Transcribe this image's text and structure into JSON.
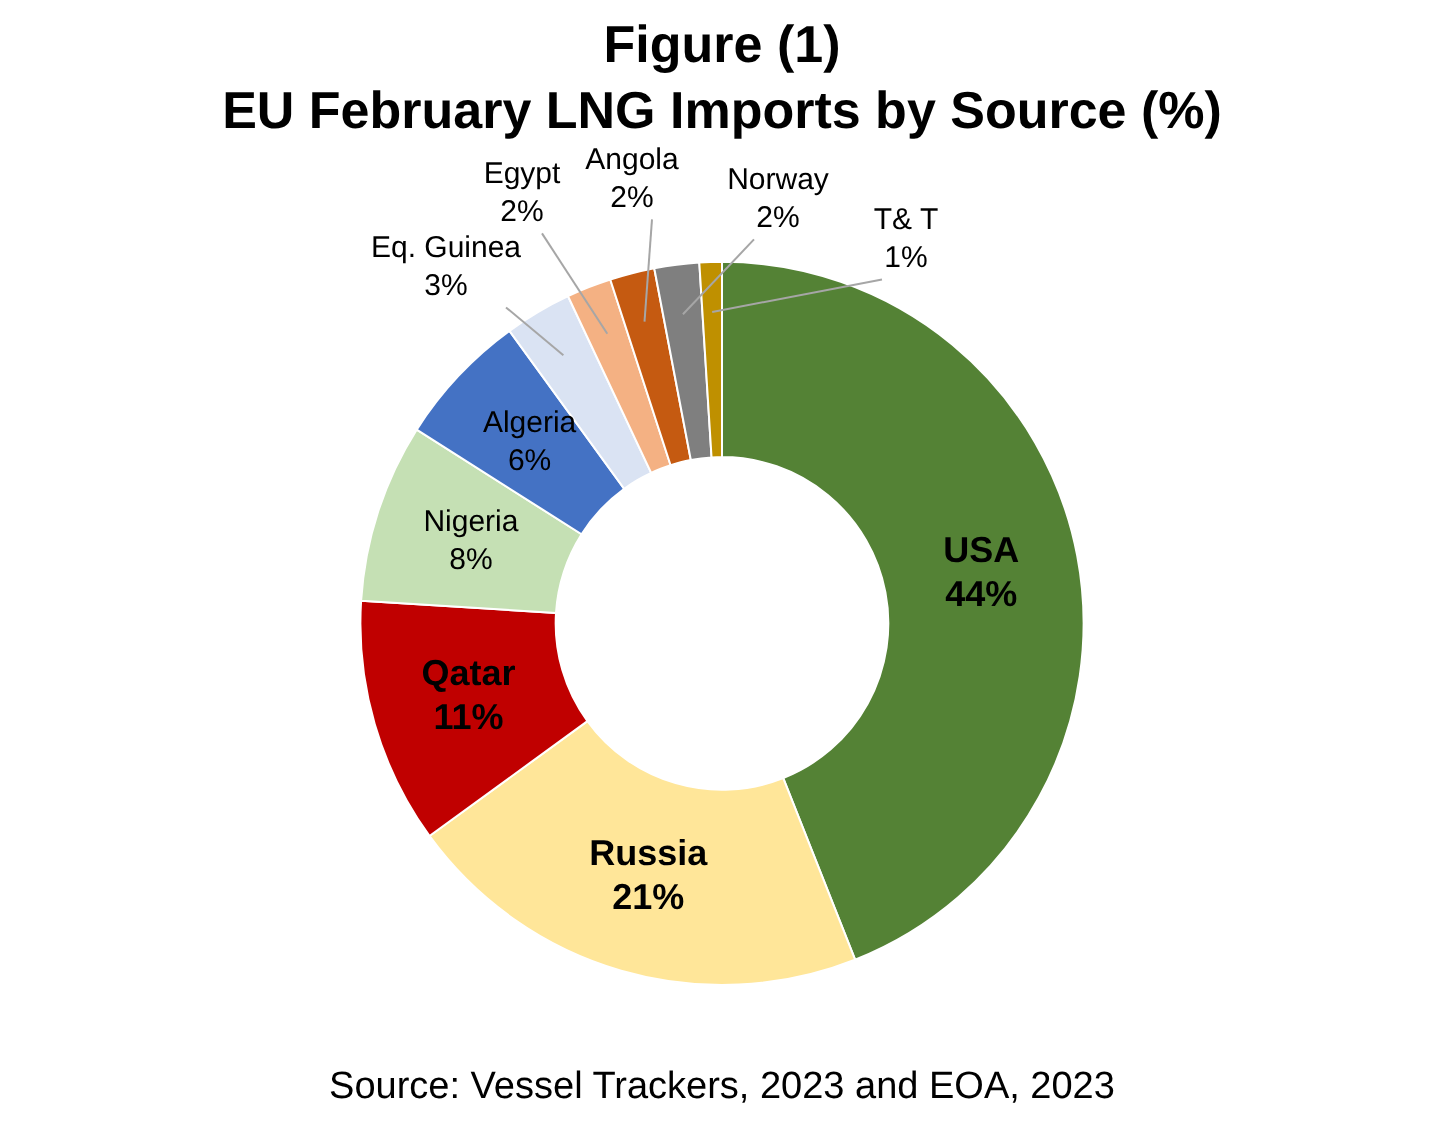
{
  "chart_data": {
    "type": "donut",
    "title": "Figure (1)",
    "subtitle": "EU February LNG Imports by Source (%)",
    "categories": [
      "USA",
      "Russia",
      "Qatar",
      "Nigeria",
      "Algeria",
      "Eq. Guinea",
      "Egypt",
      "Angola",
      "Norway",
      "T& T"
    ],
    "values": [
      44,
      21,
      11,
      8,
      6,
      3,
      2,
      2,
      2,
      1
    ],
    "colors": [
      "#548235",
      "#ffe699",
      "#c00000",
      "#c5e0b4",
      "#4472c4",
      "#dae3f3",
      "#f4b183",
      "#c55a11",
      "#7f7f7f",
      "#bf9000"
    ],
    "value_labels": [
      "44%",
      "21%",
      "11%",
      "8%",
      "6%",
      "3%",
      "2%",
      "2%",
      "2%",
      "1%"
    ],
    "legend": false,
    "annotations": [
      "Source: Vessel Trackers, 2023 and EOA, 2023"
    ]
  }
}
